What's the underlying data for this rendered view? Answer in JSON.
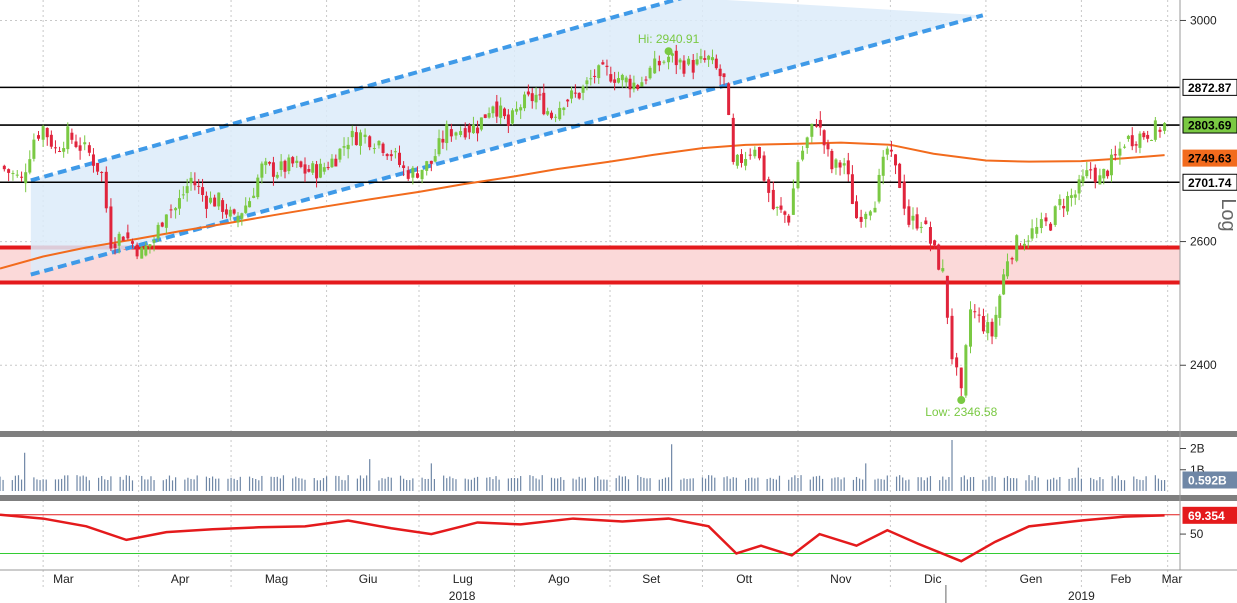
{
  "colors": {
    "up": "#7ac943",
    "down": "#e0243c",
    "ma": "#f26b1d",
    "channel": "#3f9ae8",
    "channel_fill": "#dcebf9",
    "zone_fill": "#fbd9d9",
    "zone_line": "#e41a1c",
    "rsi": "#e41a1c",
    "volume": "#6f87a6",
    "grid": "#c8c8c8",
    "hi_low_label": "#7ac943"
  },
  "chart_data": {
    "type": "candlestick",
    "scale": "log",
    "scale_label": "Log",
    "x": {
      "months": [
        "Mar",
        "Apr",
        "Mag",
        "Giu",
        "Lug",
        "Ago",
        "Set",
        "Ott",
        "Nov",
        "Dic",
        "Gen",
        "Feb",
        "Mar"
      ],
      "years": [
        "2018",
        "2019"
      ],
      "range": [
        "2018-02-15",
        "2019-03-05"
      ]
    },
    "y": {
      "ticks": [
        2400,
        2600,
        3000
      ],
      "range": [
        2300,
        3040
      ]
    },
    "horizontal_levels": [
      {
        "value": 2872.87,
        "label": "2872.87",
        "color": "#000000"
      },
      {
        "value": 2803.69,
        "label": "2803.69",
        "color": "#000000"
      },
      {
        "value": 2701.74,
        "label": "2701.74",
        "color": "#000000"
      }
    ],
    "current_price": {
      "value": 2803.69,
      "label": "2803.69",
      "bg": "#7ac943"
    },
    "moving_average": {
      "label": "2749.63",
      "value": 2749.63,
      "points": [
        [
          "2018-02-15",
          2555
        ],
        [
          "2018-03-01",
          2575
        ],
        [
          "2018-03-15",
          2590
        ],
        [
          "2018-04-01",
          2605
        ],
        [
          "2018-04-15",
          2618
        ],
        [
          "2018-05-01",
          2632
        ],
        [
          "2018-05-15",
          2645
        ],
        [
          "2018-06-01",
          2660
        ],
        [
          "2018-06-15",
          2672
        ],
        [
          "2018-07-01",
          2685
        ],
        [
          "2018-07-15",
          2698
        ],
        [
          "2018-08-01",
          2712
        ],
        [
          "2018-08-15",
          2725
        ],
        [
          "2018-09-01",
          2738
        ],
        [
          "2018-09-15",
          2750
        ],
        [
          "2018-10-01",
          2762
        ],
        [
          "2018-10-15",
          2768
        ],
        [
          "2018-11-01",
          2770
        ],
        [
          "2018-11-15",
          2772
        ],
        [
          "2018-12-01",
          2768
        ],
        [
          "2018-12-15",
          2752
        ],
        [
          "2019-01-01",
          2740
        ],
        [
          "2019-01-15",
          2738
        ],
        [
          "2019-02-01",
          2739
        ],
        [
          "2019-02-15",
          2744
        ],
        [
          "2019-02-28",
          2749.63
        ]
      ]
    },
    "support_zone": {
      "from": 2532,
      "to": 2590
    },
    "channel": {
      "upper": [
        [
          "2018-02-25",
          2705
        ],
        [
          "2018-09-25",
          3045
        ]
      ],
      "lower": [
        [
          "2018-02-25",
          2545
        ],
        [
          "2018-12-31",
          3010
        ]
      ]
    },
    "annotations": [
      {
        "text": "Hi: 2940.91",
        "date": "2018-09-20",
        "value": 2940.91
      },
      {
        "text": "Low: 2346.58",
        "date": "2018-12-24",
        "value": 2346.58
      }
    ],
    "close_series": [
      [
        "2018-02-15",
        2730
      ],
      [
        "2018-02-22",
        2705
      ],
      [
        "2018-02-26",
        2780
      ],
      [
        "2018-03-01",
        2800
      ],
      [
        "2018-03-05",
        2760
      ],
      [
        "2018-03-09",
        2786
      ],
      [
        "2018-03-13",
        2765
      ],
      [
        "2018-03-16",
        2752
      ],
      [
        "2018-03-20",
        2716
      ],
      [
        "2018-03-23",
        2600
      ],
      [
        "2018-03-27",
        2612
      ],
      [
        "2018-04-02",
        2581
      ],
      [
        "2018-04-06",
        2604
      ],
      [
        "2018-04-10",
        2656
      ],
      [
        "2018-04-13",
        2656
      ],
      [
        "2018-04-18",
        2708
      ],
      [
        "2018-04-23",
        2670
      ],
      [
        "2018-04-27",
        2669
      ],
      [
        "2018-05-02",
        2635
      ],
      [
        "2018-05-07",
        2672
      ],
      [
        "2018-05-11",
        2727
      ],
      [
        "2018-05-16",
        2722
      ],
      [
        "2018-05-21",
        2733
      ],
      [
        "2018-05-25",
        2721
      ],
      [
        "2018-05-30",
        2724
      ],
      [
        "2018-06-04",
        2746
      ],
      [
        "2018-06-08",
        2779
      ],
      [
        "2018-06-12",
        2786
      ],
      [
        "2018-06-18",
        2774
      ],
      [
        "2018-06-22",
        2754
      ],
      [
        "2018-06-26",
        2723
      ],
      [
        "2018-06-29",
        2718
      ],
      [
        "2018-07-05",
        2736
      ],
      [
        "2018-07-10",
        2793
      ],
      [
        "2018-07-16",
        2798
      ],
      [
        "2018-07-20",
        2801
      ],
      [
        "2018-07-25",
        2846
      ],
      [
        "2018-07-30",
        2802
      ],
      [
        "2018-08-03",
        2840
      ],
      [
        "2018-08-08",
        2857
      ],
      [
        "2018-08-13",
        2821
      ],
      [
        "2018-08-17",
        2850
      ],
      [
        "2018-08-22",
        2861
      ],
      [
        "2018-08-27",
        2896
      ],
      [
        "2018-08-31",
        2901
      ],
      [
        "2018-09-05",
        2888
      ],
      [
        "2018-09-10",
        2877
      ],
      [
        "2018-09-14",
        2904
      ],
      [
        "2018-09-20",
        2930
      ],
      [
        "2018-09-25",
        2915
      ],
      [
        "2018-09-28",
        2913
      ],
      [
        "2018-10-03",
        2925
      ],
      [
        "2018-10-08",
        2884
      ],
      [
        "2018-10-11",
        2728
      ],
      [
        "2018-10-15",
        2750
      ],
      [
        "2018-10-18",
        2768
      ],
      [
        "2018-10-24",
        2656
      ],
      [
        "2018-10-29",
        2641
      ],
      [
        "2018-11-01",
        2740
      ],
      [
        "2018-11-07",
        2813
      ],
      [
        "2018-11-12",
        2726
      ],
      [
        "2018-11-16",
        2736
      ],
      [
        "2018-11-20",
        2641
      ],
      [
        "2018-11-26",
        2673
      ],
      [
        "2018-11-30",
        2760
      ],
      [
        "2018-12-04",
        2700
      ],
      [
        "2018-12-07",
        2633
      ],
      [
        "2018-12-11",
        2636
      ],
      [
        "2018-12-14",
        2599
      ],
      [
        "2018-12-18",
        2546
      ],
      [
        "2018-12-21",
        2416
      ],
      [
        "2018-12-24",
        2351
      ],
      [
        "2018-12-27",
        2488
      ],
      [
        "2019-01-03",
        2448
      ],
      [
        "2019-01-08",
        2574
      ],
      [
        "2019-01-11",
        2596
      ],
      [
        "2019-01-16",
        2616
      ],
      [
        "2019-01-22",
        2632
      ],
      [
        "2019-01-25",
        2664
      ],
      [
        "2019-01-30",
        2681
      ],
      [
        "2019-02-04",
        2724
      ],
      [
        "2019-02-07",
        2706
      ],
      [
        "2019-02-12",
        2744
      ],
      [
        "2019-02-15",
        2775
      ],
      [
        "2019-02-20",
        2785
      ],
      [
        "2019-02-25",
        2796
      ],
      [
        "2019-02-28",
        2803.69
      ]
    ]
  },
  "volume": {
    "value_label": "0.592B",
    "ticks": [
      "2B",
      "1B"
    ],
    "spikes": [
      [
        "2018-02-23",
        1.8
      ],
      [
        "2018-06-15",
        1.5
      ],
      [
        "2018-06-30",
        1.9
      ],
      [
        "2018-07-05",
        1.3
      ],
      [
        "2018-09-21",
        2.2
      ],
      [
        "2018-11-23",
        1.3
      ],
      [
        "2018-12-21",
        2.4
      ],
      [
        "2019-01-31",
        1.1
      ]
    ]
  },
  "rsi": {
    "value_label": "69.354",
    "ticks": [
      "50"
    ],
    "levels": [
      70,
      30
    ],
    "points": [
      [
        "2018-02-15",
        70
      ],
      [
        "2018-03-01",
        66
      ],
      [
        "2018-03-15",
        58
      ],
      [
        "2018-03-28",
        44
      ],
      [
        "2018-04-10",
        52
      ],
      [
        "2018-04-25",
        55
      ],
      [
        "2018-05-10",
        57
      ],
      [
        "2018-05-25",
        58
      ],
      [
        "2018-06-08",
        64
      ],
      [
        "2018-06-22",
        56
      ],
      [
        "2018-07-05",
        50
      ],
      [
        "2018-07-20",
        62
      ],
      [
        "2018-08-03",
        60
      ],
      [
        "2018-08-20",
        66
      ],
      [
        "2018-09-05",
        63
      ],
      [
        "2018-09-20",
        66
      ],
      [
        "2018-10-03",
        58
      ],
      [
        "2018-10-12",
        30
      ],
      [
        "2018-10-20",
        38
      ],
      [
        "2018-10-30",
        28
      ],
      [
        "2018-11-08",
        50
      ],
      [
        "2018-11-20",
        38
      ],
      [
        "2018-11-30",
        54
      ],
      [
        "2018-12-10",
        40
      ],
      [
        "2018-12-24",
        22
      ],
      [
        "2019-01-04",
        42
      ],
      [
        "2019-01-15",
        58
      ],
      [
        "2019-02-01",
        64
      ],
      [
        "2019-02-15",
        68
      ],
      [
        "2019-02-28",
        69.354
      ]
    ]
  }
}
